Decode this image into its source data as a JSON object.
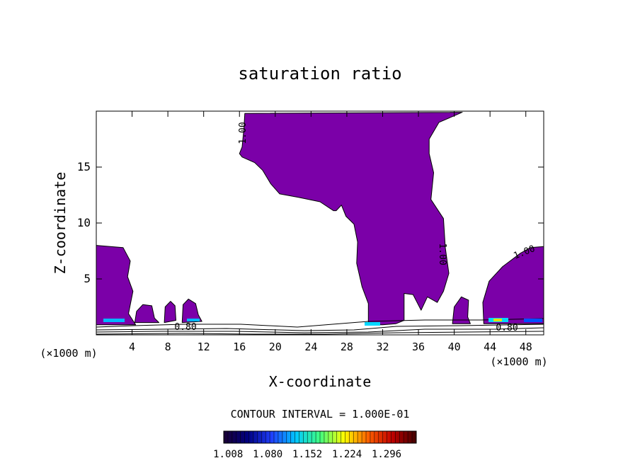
{
  "chart_data": {
    "type": "heatmap",
    "title": "saturation ratio",
    "xlabel": "X-coordinate",
    "ylabel": "Z-coordinate",
    "x_unit": "(×1000 m)",
    "z_unit": "(×1000 m)",
    "xlim": [
      0,
      50
    ],
    "ylim": [
      0,
      20
    ],
    "x_ticks": [
      4,
      8,
      12,
      16,
      20,
      24,
      28,
      32,
      36,
      40,
      44,
      48
    ],
    "y_ticks": [
      5,
      10,
      15
    ],
    "contour_interval_text": "CONTOUR INTERVAL = 1.000E-01",
    "contour_labels": [
      "1.00",
      "1.00",
      "1.00",
      "0.80",
      "0.80"
    ],
    "colorbar": {
      "ticks": [
        1.008,
        1.08,
        1.152,
        1.224,
        1.296
      ],
      "tick_labels": [
        "1.008",
        "1.080",
        "1.152",
        "1.224",
        "1.296"
      ],
      "colors": [
        "#1a0033",
        "#000080",
        "#2040ff",
        "#00c8ff",
        "#40ff80",
        "#ffff00",
        "#ff6000",
        "#c00000",
        "#400000"
      ]
    },
    "fill_color": "#7b00a8",
    "supersaturated_regions": [
      {
        "points": [
          [
            0,
            8
          ],
          [
            3,
            7.8
          ],
          [
            3.8,
            6.6
          ],
          [
            3.5,
            5.2
          ],
          [
            4.1,
            3.9
          ],
          [
            3.6,
            1.9
          ],
          [
            4.4,
            0.9
          ],
          [
            0,
            0.9
          ]
        ]
      },
      {
        "points": [
          [
            4.3,
            1.1
          ],
          [
            4.5,
            2.1
          ],
          [
            5.2,
            2.7
          ],
          [
            6.2,
            2.6
          ],
          [
            6.5,
            1.5
          ],
          [
            7,
            1.1
          ]
        ]
      },
      {
        "points": [
          [
            7.6,
            1.1
          ],
          [
            7.7,
            2.5
          ],
          [
            8.3,
            3
          ],
          [
            8.8,
            2.6
          ],
          [
            8.9,
            1.3
          ]
        ]
      },
      {
        "points": [
          [
            9.6,
            1.1
          ],
          [
            9.7,
            2.7
          ],
          [
            10.3,
            3.2
          ],
          [
            11.1,
            2.8
          ],
          [
            11.4,
            1.8
          ],
          [
            11.8,
            1.2
          ]
        ]
      },
      {
        "points": [
          [
            16.6,
            19.8
          ],
          [
            40.9,
            19.9
          ],
          [
            38.3,
            19
          ],
          [
            37.2,
            17.5
          ],
          [
            37.2,
            16.2
          ],
          [
            37.7,
            14.5
          ],
          [
            37.4,
            12.1
          ],
          [
            38.8,
            10.4
          ],
          [
            39,
            7.8
          ],
          [
            39.4,
            5.5
          ],
          [
            38.8,
            3.9
          ],
          [
            38.1,
            2.9
          ],
          [
            37,
            3.4
          ],
          [
            36.3,
            2.2
          ],
          [
            35.4,
            3.6
          ],
          [
            34.4,
            3.7
          ],
          [
            34.4,
            1.3
          ],
          [
            33.5,
            1
          ],
          [
            32,
            0.9
          ],
          [
            30.4,
            0.9
          ],
          [
            30.4,
            2.8
          ],
          [
            29.7,
            4.3
          ],
          [
            29.1,
            6.4
          ],
          [
            29.2,
            8.3
          ],
          [
            28.8,
            9.9
          ],
          [
            27.9,
            10.6
          ],
          [
            27.4,
            11.6
          ],
          [
            26.8,
            11.1
          ],
          [
            26.5,
            11.1
          ],
          [
            25,
            11.9
          ],
          [
            22.6,
            12.3
          ],
          [
            20.5,
            12.6
          ],
          [
            19.5,
            13.5
          ],
          [
            18.6,
            14.7
          ],
          [
            17.7,
            15.4
          ],
          [
            16.3,
            15.9
          ],
          [
            16,
            16.2
          ],
          [
            16.3,
            16.8
          ],
          [
            16.5,
            18.5
          ]
        ]
      },
      {
        "points": [
          [
            39.8,
            1
          ],
          [
            40,
            2.5
          ],
          [
            40.8,
            3.4
          ],
          [
            41.6,
            3.1
          ],
          [
            41.5,
            1.6
          ],
          [
            41.8,
            1
          ]
        ]
      },
      {
        "points": [
          [
            43.3,
            1
          ],
          [
            43.2,
            2.9
          ],
          [
            43.9,
            4.8
          ],
          [
            45.4,
            6.1
          ],
          [
            47.4,
            7.3
          ],
          [
            48.5,
            7.8
          ],
          [
            50,
            7.9
          ],
          [
            50,
            1
          ]
        ]
      }
    ]
  }
}
